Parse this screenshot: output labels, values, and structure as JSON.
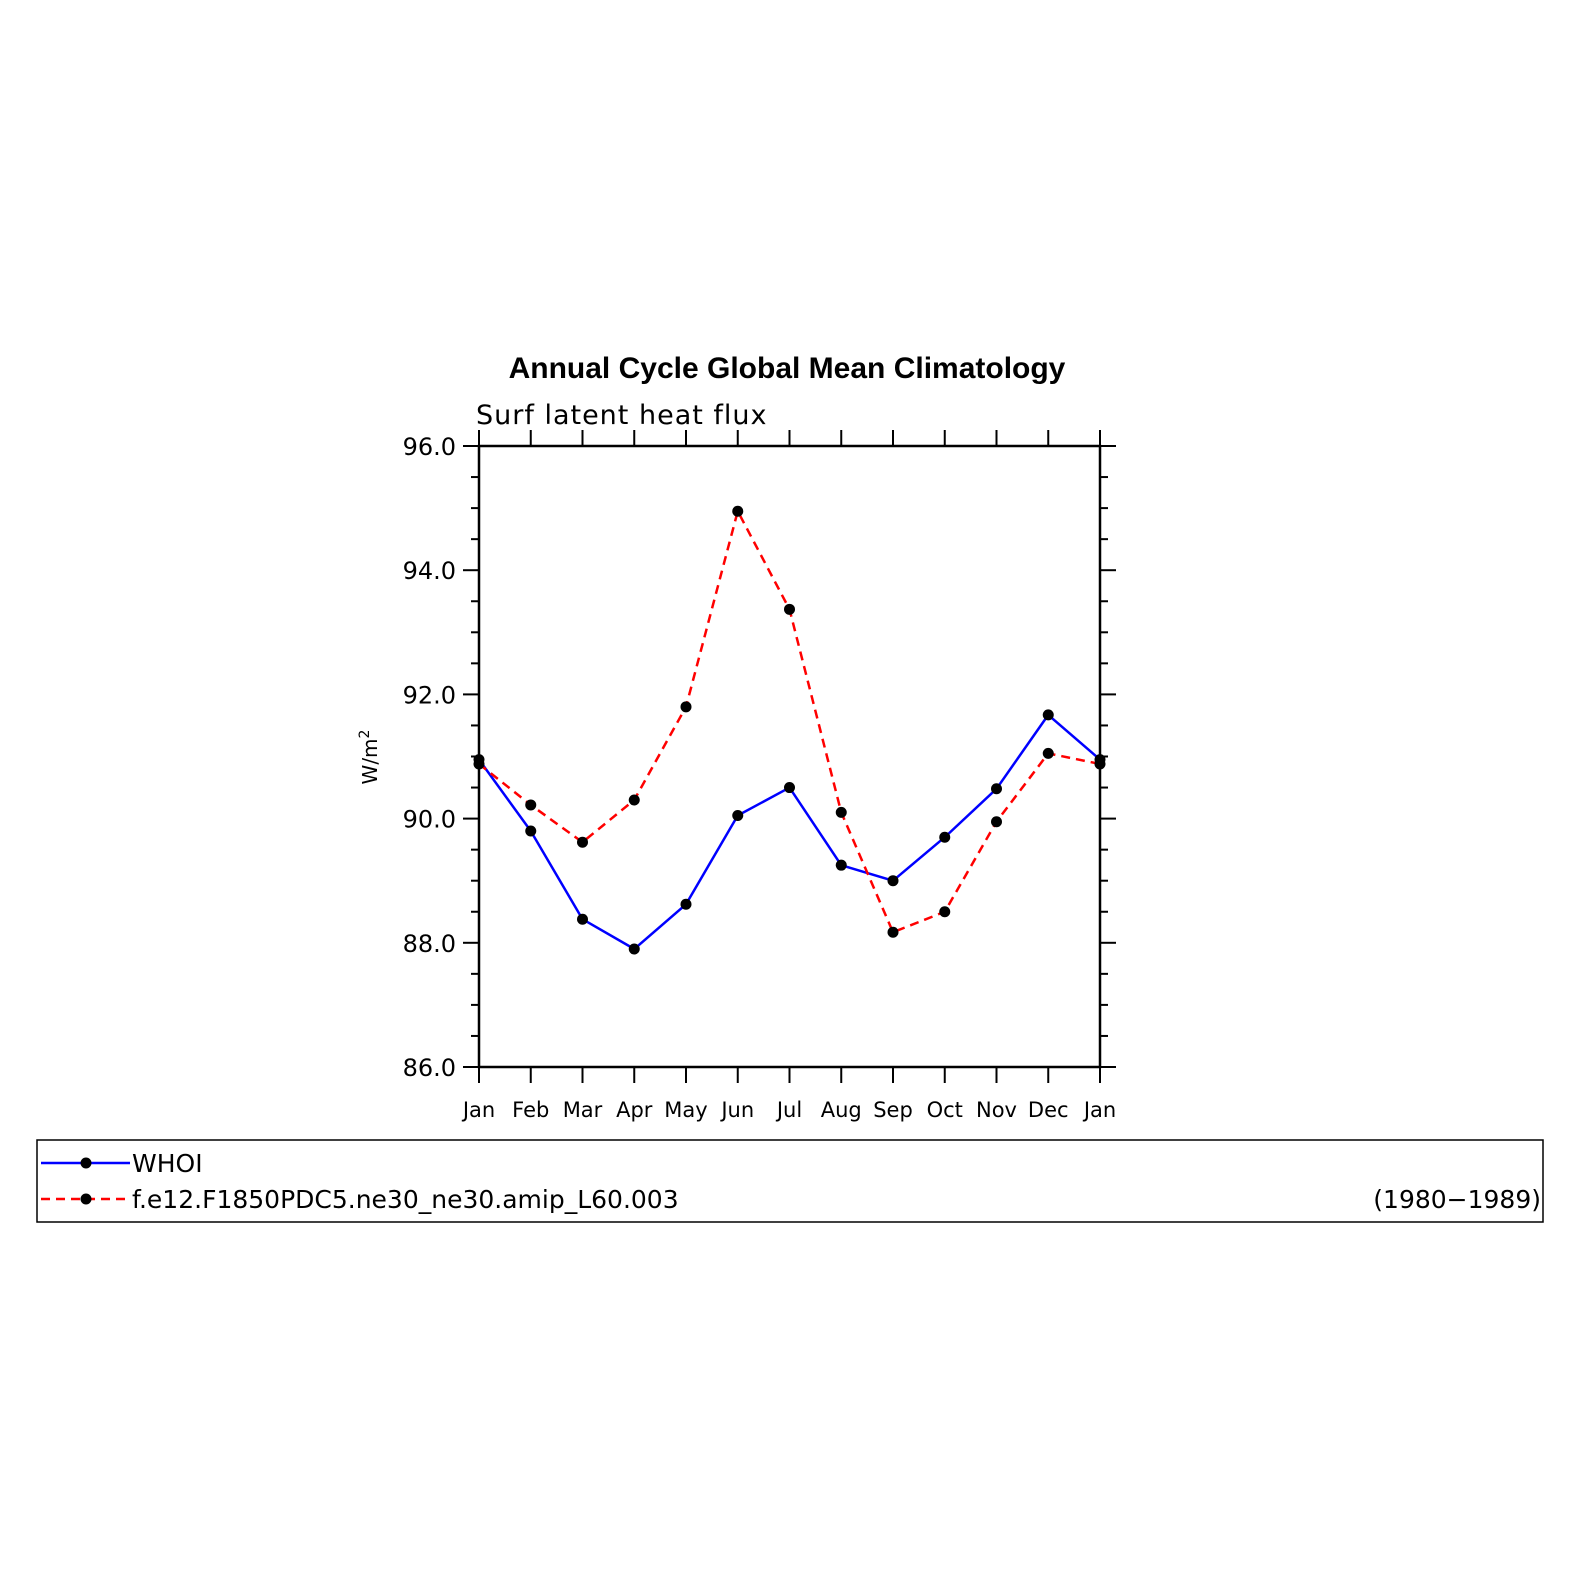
{
  "chart_data": {
    "type": "line",
    "title": "Annual Cycle Global Mean Climatology",
    "subtitle": "Surf latent heat flux",
    "ylabel": "W/m",
    "ylabel_sup": "2",
    "ylim": [
      86.0,
      96.0
    ],
    "yticks": [
      86.0,
      88.0,
      90.0,
      92.0,
      94.0,
      96.0
    ],
    "ytick_labels": [
      "86.0",
      "88.0",
      "90.0",
      "92.0",
      "94.0",
      "96.0"
    ],
    "categories": [
      "Jan",
      "Feb",
      "Mar",
      "Apr",
      "May",
      "Jun",
      "Jul",
      "Aug",
      "Sep",
      "Oct",
      "Nov",
      "Dec",
      "Jan"
    ],
    "series": [
      {
        "name": "WHOI",
        "color": "#0000ff",
        "dash": "solid",
        "values": [
          90.95,
          89.8,
          88.38,
          87.9,
          88.62,
          90.05,
          90.5,
          89.25,
          89.0,
          89.7,
          90.48,
          91.67,
          90.95
        ]
      },
      {
        "name": "f.e12.F1850PDC5.ne30_ne30.amip_L60.003",
        "color": "#ff0000",
        "dash": "dashed",
        "values": [
          90.88,
          90.22,
          89.62,
          90.3,
          91.8,
          94.95,
          93.37,
          90.1,
          88.17,
          88.5,
          89.95,
          91.05,
          90.88
        ]
      }
    ],
    "legend": {
      "placement": "bottom",
      "period_label": "(1980−1989)"
    },
    "grid": false,
    "marker_color": "#000000"
  }
}
